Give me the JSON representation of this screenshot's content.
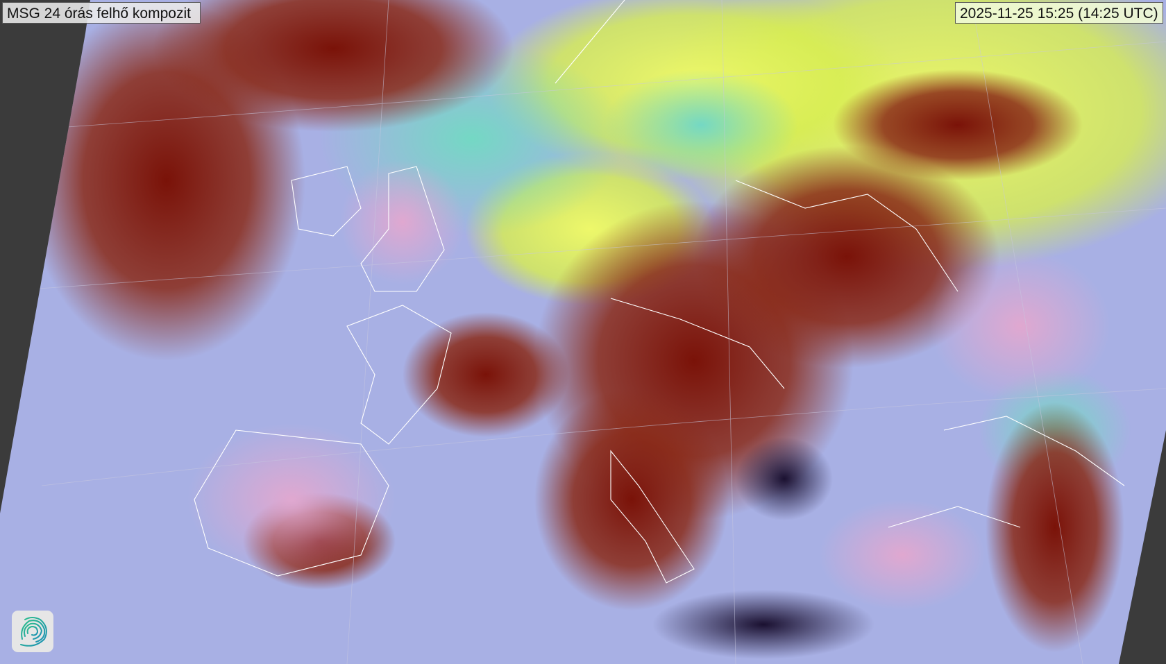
{
  "title": "MSG 24 órás felhő kompozit",
  "timestamp": "2025-11-25 15:25 (14:25 UTC)",
  "logo": {
    "icon": "swirl-logo-icon"
  },
  "colors": {
    "background": "#3b3b3b",
    "cloud_red": "#7a1a10",
    "cloud_yellow": "#e8f060",
    "cloud_cyan": "#70d8c0",
    "clear_pink": "#d8a0c8",
    "sea_blue": "#9aa8e0",
    "borders": "#ffffff"
  }
}
